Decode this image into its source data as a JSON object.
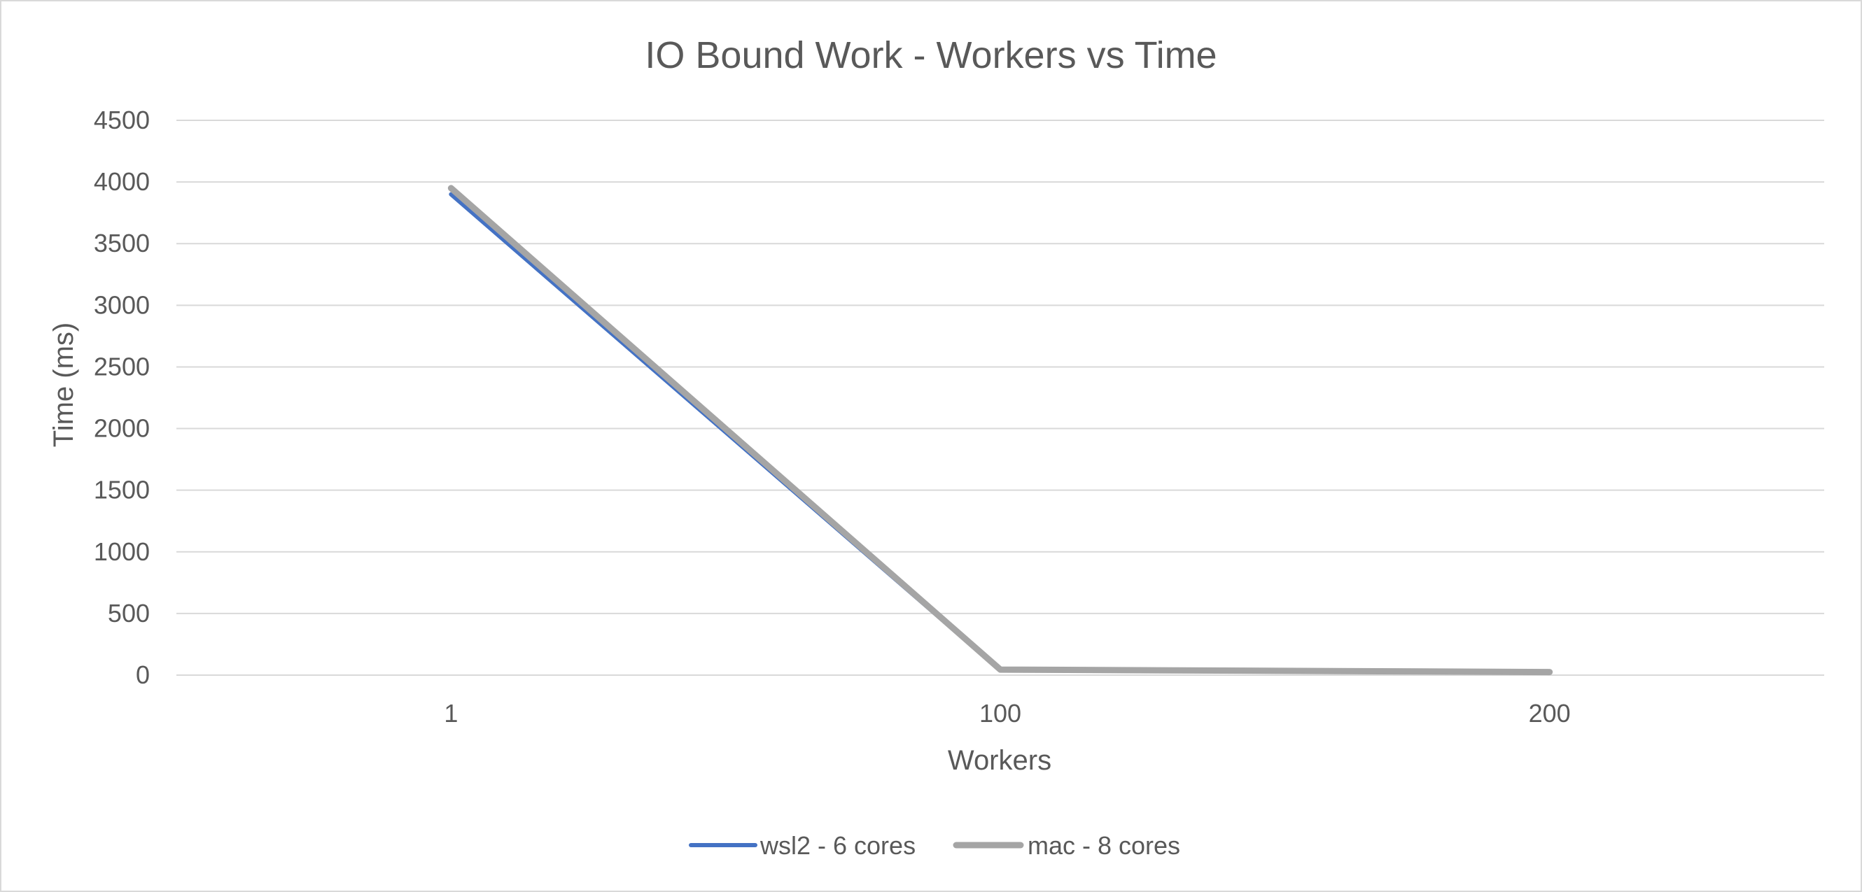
{
  "chart_data": {
    "type": "line",
    "title": "IO Bound Work - Workers vs Time",
    "xlabel": "Workers",
    "ylabel": "Time (ms)",
    "categories": [
      "1",
      "100",
      "200"
    ],
    "ylim": [
      0,
      4500
    ],
    "yticks": [
      0,
      500,
      1000,
      1500,
      2000,
      2500,
      3000,
      3500,
      4000,
      4500
    ],
    "grid": true,
    "legend_position": "bottom",
    "series": [
      {
        "name": "wsl2 - 6 cores",
        "color": "#4472C4",
        "values": [
          3900,
          40,
          20
        ]
      },
      {
        "name": "mac - 8 cores",
        "color": "#A5A5A5",
        "values": [
          3950,
          45,
          25
        ]
      }
    ]
  }
}
